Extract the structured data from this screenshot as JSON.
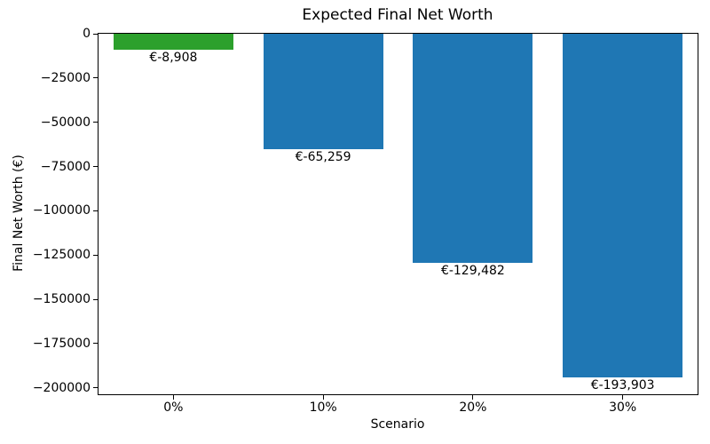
{
  "chart_data": {
    "type": "bar",
    "title": "Expected Final Net Worth",
    "xlabel": "Scenario",
    "ylabel": "Final Net Worth (€)",
    "categories": [
      "0%",
      "10%",
      "20%",
      "30%"
    ],
    "values": [
      -8908,
      -65259,
      -129482,
      -193903
    ],
    "bar_labels": [
      "€-8,908",
      "€-65,259",
      "€-129,482",
      "€-193,903"
    ],
    "bar_colors": [
      "#2ca02c",
      "#1f77b4",
      "#1f77b4",
      "#1f77b4"
    ],
    "bar_width_fraction": 0.8,
    "ylim": [
      -203598,
      0
    ],
    "yticks": [
      0,
      -25000,
      -50000,
      -75000,
      -100000,
      -125000,
      -150000,
      -175000,
      -200000
    ],
    "ytick_labels": [
      "0",
      "−25000",
      "−50000",
      "−75000",
      "−100000",
      "−125000",
      "−150000",
      "−175000",
      "−200000"
    ],
    "grid": false,
    "legend": null,
    "background_color": "#ffffff",
    "spine_color": "#000000",
    "text_color": "#000000"
  }
}
